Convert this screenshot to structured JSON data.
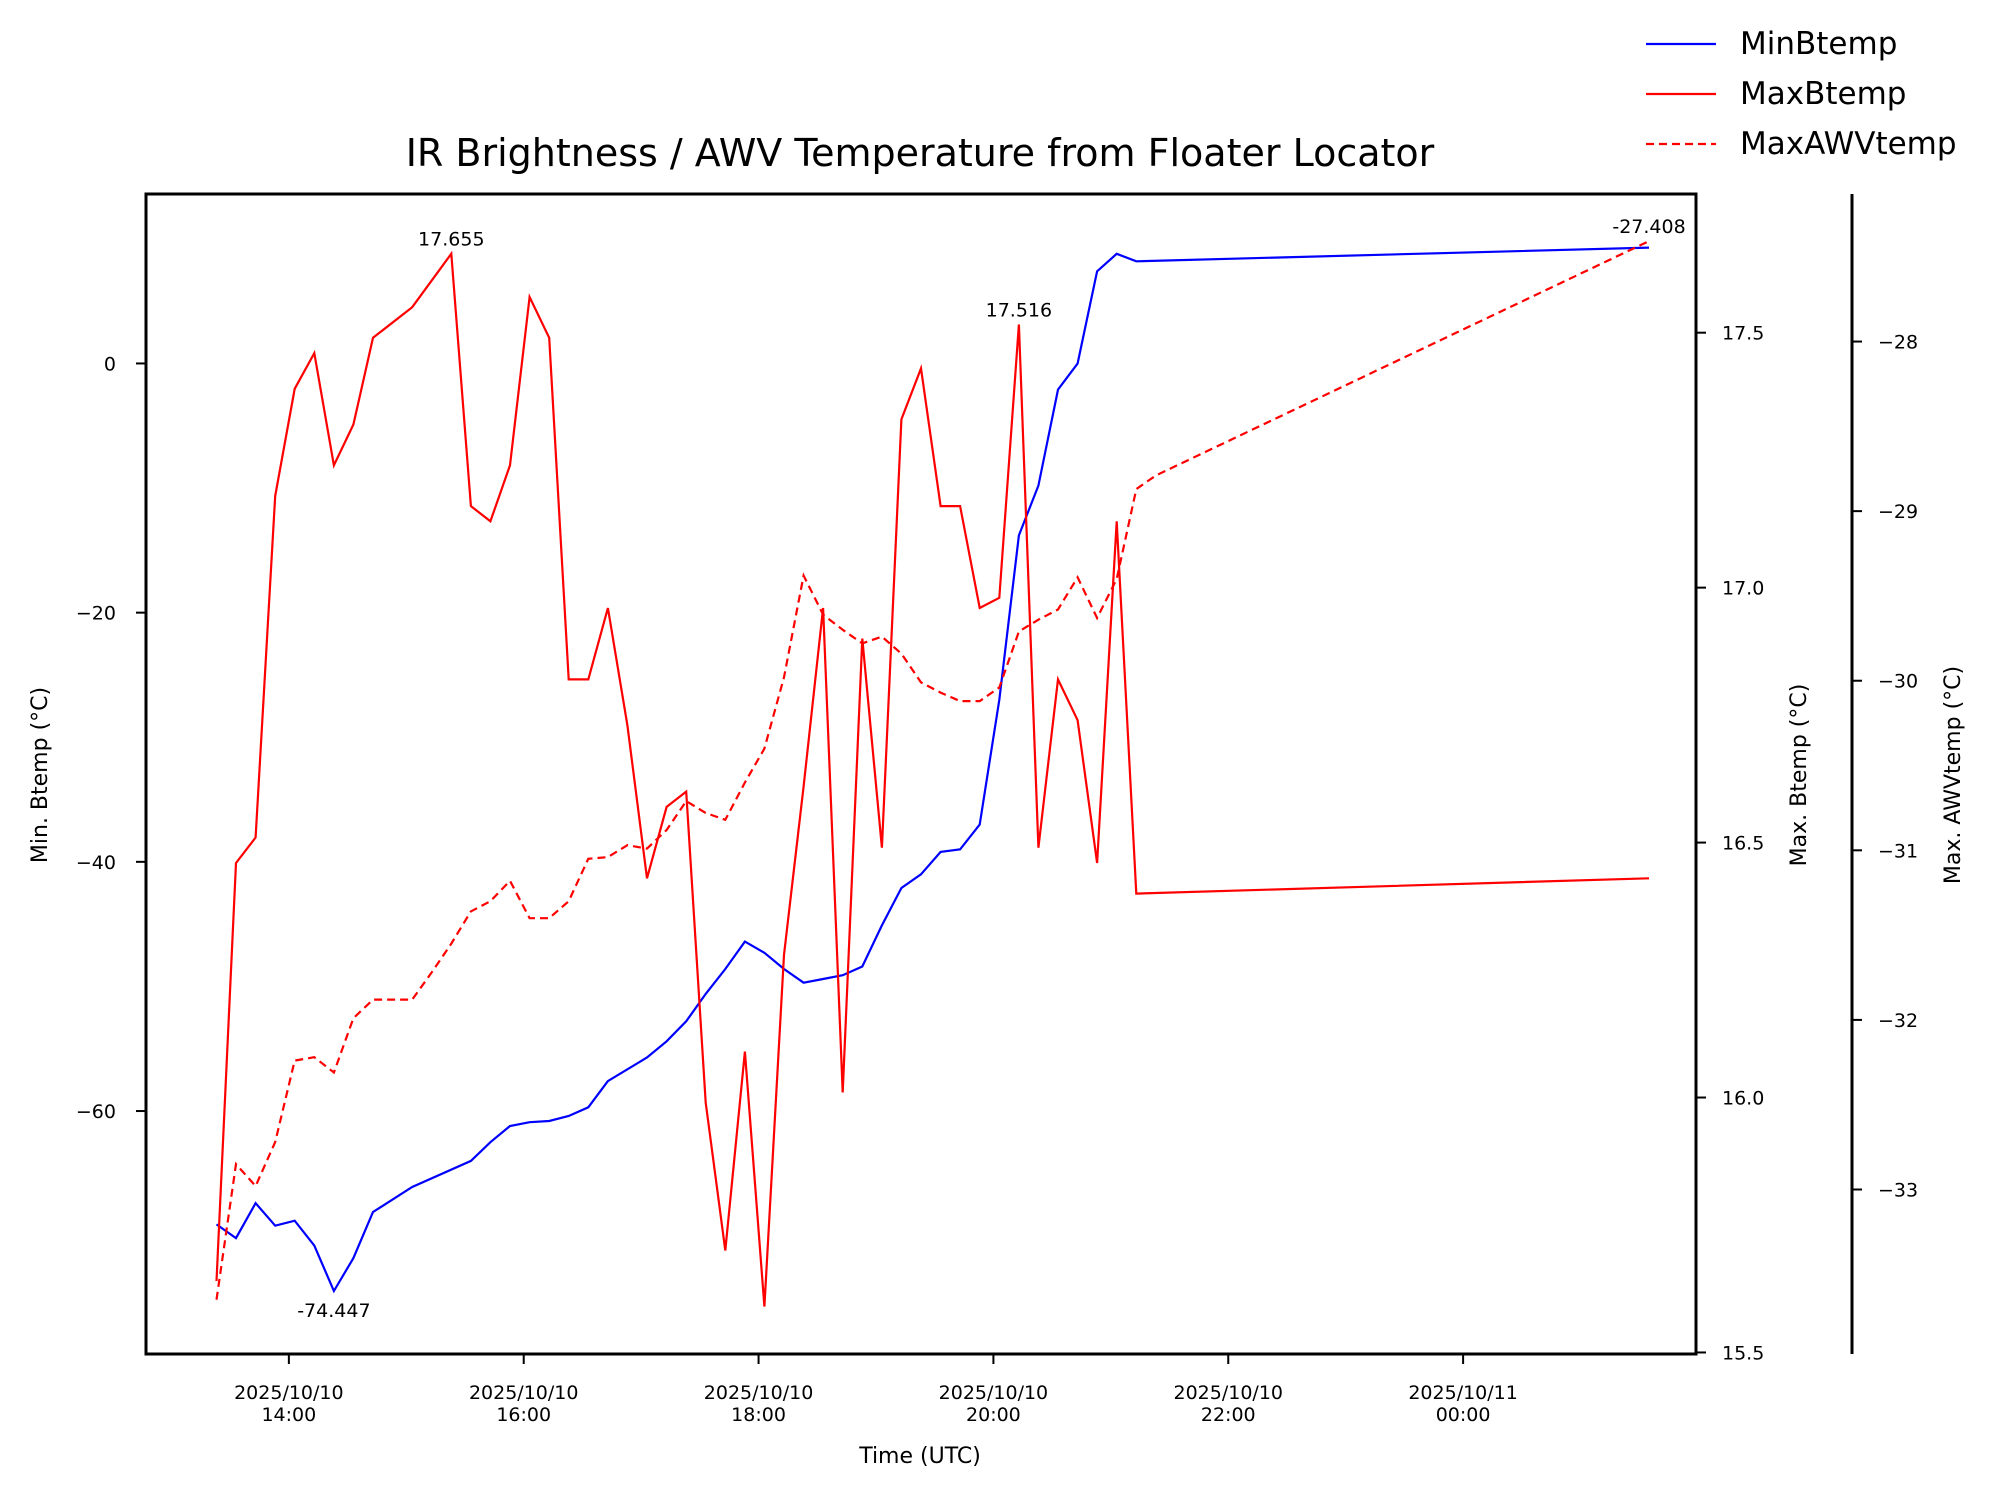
{
  "chart_data": {
    "type": "line",
    "title": "IR Brightness / AWV Temperature from Floater Locator",
    "xlabel": "Time (UTC)",
    "x_ticks": [
      {
        "value": "2025-10-10T14:00",
        "label_date": "2025/10/10",
        "label_time": "14:00"
      },
      {
        "value": "2025-10-10T16:00",
        "label_date": "2025/10/10",
        "label_time": "16:00"
      },
      {
        "value": "2025-10-10T18:00",
        "label_date": "2025/10/10",
        "label_time": "18:00"
      },
      {
        "value": "2025-10-10T20:00",
        "label_date": "2025/10/10",
        "label_time": "20:00"
      },
      {
        "value": "2025-10-10T22:00",
        "label_date": "2025/10/10",
        "label_time": "22:00"
      },
      {
        "value": "2025-10-11T00:00",
        "label_date": "2025/10/11",
        "label_time": "00:00"
      }
    ],
    "xlim": [
      "2025-10-10T12:47",
      "2025-10-11T01:59"
    ],
    "y_axes": [
      {
        "id": "min",
        "label": "Min. Btemp (°C)",
        "ylim": [
          -79.5,
          13.6
        ],
        "ticks": [
          0,
          -20,
          -40,
          -60
        ],
        "tick_labels": [
          "0",
          "−20",
          "−40",
          "−60"
        ]
      },
      {
        "id": "max",
        "label": "Max. Btemp (°C)",
        "ylim": [
          15.497,
          17.772
        ],
        "ticks": [
          17.5,
          17.0,
          16.5,
          16.0,
          15.5
        ],
        "tick_labels": [
          "17.5",
          "17.0",
          "16.5",
          "16.0",
          "15.5"
        ]
      },
      {
        "id": "awv",
        "label": "Max. AWVtemp (°C)",
        "ylim": [
          -33.97,
          -27.13
        ],
        "ticks": [
          -28,
          -29,
          -30,
          -31,
          -32,
          -33
        ],
        "tick_labels": [
          "−28",
          "−29",
          "−30",
          "−31",
          "−32",
          "−33"
        ]
      }
    ],
    "legend_position": "top-right, outside plot",
    "series": [
      {
        "name": "MinBtemp",
        "axis": "min",
        "color": "#0000ff",
        "style": "solid",
        "points": [
          [
            "2025-10-10T13:23",
            -69.1
          ],
          [
            "2025-10-10T13:33",
            -70.2
          ],
          [
            "2025-10-10T13:43",
            -67.4
          ],
          [
            "2025-10-10T13:53",
            -69.2
          ],
          [
            "2025-10-10T14:03",
            -68.8
          ],
          [
            "2025-10-10T14:13",
            -70.8
          ],
          [
            "2025-10-10T14:23",
            -74.447
          ],
          [
            "2025-10-10T14:33",
            -71.8
          ],
          [
            "2025-10-10T14:43",
            -68.1
          ],
          [
            "2025-10-10T15:03",
            -66.1
          ],
          [
            "2025-10-10T15:33",
            -64.0
          ],
          [
            "2025-10-10T15:43",
            -62.5
          ],
          [
            "2025-10-10T15:53",
            -61.2
          ],
          [
            "2025-10-10T16:03",
            -60.9
          ],
          [
            "2025-10-10T16:13",
            -60.8
          ],
          [
            "2025-10-10T16:23",
            -60.4
          ],
          [
            "2025-10-10T16:33",
            -59.7
          ],
          [
            "2025-10-10T16:43",
            -57.6
          ],
          [
            "2025-10-10T17:03",
            -55.7
          ],
          [
            "2025-10-10T17:13",
            -54.4
          ],
          [
            "2025-10-10T17:23",
            -52.8
          ],
          [
            "2025-10-10T17:33",
            -50.6
          ],
          [
            "2025-10-10T17:43",
            -48.6
          ],
          [
            "2025-10-10T17:53",
            -46.4
          ],
          [
            "2025-10-10T18:03",
            -47.3
          ],
          [
            "2025-10-10T18:13",
            -48.6
          ],
          [
            "2025-10-10T18:23",
            -49.7
          ],
          [
            "2025-10-10T18:33",
            -49.4
          ],
          [
            "2025-10-10T18:43",
            -49.1
          ],
          [
            "2025-10-10T18:53",
            -48.4
          ],
          [
            "2025-10-10T19:03",
            -45.1
          ],
          [
            "2025-10-10T19:13",
            -42.1
          ],
          [
            "2025-10-10T19:23",
            -41.0
          ],
          [
            "2025-10-10T19:33",
            -39.2
          ],
          [
            "2025-10-10T19:43",
            -39.0
          ],
          [
            "2025-10-10T19:53",
            -37.0
          ],
          [
            "2025-10-10T20:03",
            -27.0
          ],
          [
            "2025-10-10T20:13",
            -13.8
          ],
          [
            "2025-10-10T20:23",
            -9.8
          ],
          [
            "2025-10-10T20:33",
            -2.1
          ],
          [
            "2025-10-10T20:43",
            0.0
          ],
          [
            "2025-10-10T20:53",
            7.4
          ],
          [
            "2025-10-10T21:03",
            8.8
          ],
          [
            "2025-10-10T21:13",
            8.2
          ],
          [
            "2025-10-11T01:35",
            9.3
          ]
        ]
      },
      {
        "name": "MaxBtemp",
        "axis": "max",
        "color": "#ff0000",
        "style": "solid",
        "points": [
          [
            "2025-10-10T13:23",
            15.64
          ],
          [
            "2025-10-10T13:33",
            16.46
          ],
          [
            "2025-10-10T13:43",
            16.51
          ],
          [
            "2025-10-10T13:53",
            17.18
          ],
          [
            "2025-10-10T14:03",
            17.39
          ],
          [
            "2025-10-10T14:13",
            17.46
          ],
          [
            "2025-10-10T14:23",
            17.24
          ],
          [
            "2025-10-10T14:33",
            17.32
          ],
          [
            "2025-10-10T14:43",
            17.49
          ],
          [
            "2025-10-10T15:03",
            17.55
          ],
          [
            "2025-10-10T15:23",
            17.655
          ],
          [
            "2025-10-10T15:33",
            17.16
          ],
          [
            "2025-10-10T15:43",
            17.13
          ],
          [
            "2025-10-10T15:53",
            17.24
          ],
          [
            "2025-10-10T16:03",
            17.57
          ],
          [
            "2025-10-10T16:13",
            17.49
          ],
          [
            "2025-10-10T16:23",
            16.82
          ],
          [
            "2025-10-10T16:33",
            16.82
          ],
          [
            "2025-10-10T16:43",
            16.96
          ],
          [
            "2025-10-10T16:53",
            16.73
          ],
          [
            "2025-10-10T17:03",
            16.43
          ],
          [
            "2025-10-10T17:13",
            16.57
          ],
          [
            "2025-10-10T17:23",
            16.6
          ],
          [
            "2025-10-10T17:33",
            15.99
          ],
          [
            "2025-10-10T17:43",
            15.7
          ],
          [
            "2025-10-10T17:53",
            16.09
          ],
          [
            "2025-10-10T18:03",
            15.59
          ],
          [
            "2025-10-10T18:13",
            16.28
          ],
          [
            "2025-10-10T18:23",
            16.61
          ],
          [
            "2025-10-10T18:33",
            16.96
          ],
          [
            "2025-10-10T18:43",
            16.01
          ],
          [
            "2025-10-10T18:53",
            16.9
          ],
          [
            "2025-10-10T19:03",
            16.49
          ],
          [
            "2025-10-10T19:13",
            17.33
          ],
          [
            "2025-10-10T19:23",
            17.43
          ],
          [
            "2025-10-10T19:33",
            17.16
          ],
          [
            "2025-10-10T19:43",
            17.16
          ],
          [
            "2025-10-10T19:53",
            16.96
          ],
          [
            "2025-10-10T20:03",
            16.98
          ],
          [
            "2025-10-10T20:13",
            17.516
          ],
          [
            "2025-10-10T20:23",
            16.49
          ],
          [
            "2025-10-10T20:33",
            16.82
          ],
          [
            "2025-10-10T20:43",
            16.74
          ],
          [
            "2025-10-10T20:53",
            16.46
          ],
          [
            "2025-10-10T21:03",
            17.13
          ],
          [
            "2025-10-10T21:13",
            16.4
          ],
          [
            "2025-10-11T01:35",
            16.43
          ]
        ]
      },
      {
        "name": "MaxAWVtemp",
        "axis": "awv",
        "color": "#ff0000",
        "style": "dashed",
        "points": [
          [
            "2025-10-10T13:23",
            -33.65
          ],
          [
            "2025-10-10T13:33",
            -32.85
          ],
          [
            "2025-10-10T13:43",
            -32.98
          ],
          [
            "2025-10-10T13:53",
            -32.72
          ],
          [
            "2025-10-10T14:03",
            -32.24
          ],
          [
            "2025-10-10T14:13",
            -32.22
          ],
          [
            "2025-10-10T14:23",
            -32.31
          ],
          [
            "2025-10-10T14:33",
            -31.99
          ],
          [
            "2025-10-10T14:43",
            -31.88
          ],
          [
            "2025-10-10T15:03",
            -31.88
          ],
          [
            "2025-10-10T15:13",
            -31.72
          ],
          [
            "2025-10-10T15:23",
            -31.55
          ],
          [
            "2025-10-10T15:33",
            -31.36
          ],
          [
            "2025-10-10T15:43",
            -31.3
          ],
          [
            "2025-10-10T15:53",
            -31.18
          ],
          [
            "2025-10-10T16:03",
            -31.4
          ],
          [
            "2025-10-10T16:13",
            -31.4
          ],
          [
            "2025-10-10T16:23",
            -31.3
          ],
          [
            "2025-10-10T16:33",
            -31.05
          ],
          [
            "2025-10-10T16:43",
            -31.04
          ],
          [
            "2025-10-10T16:53",
            -30.97
          ],
          [
            "2025-10-10T17:03",
            -30.99
          ],
          [
            "2025-10-10T17:13",
            -30.88
          ],
          [
            "2025-10-10T17:23",
            -30.71
          ],
          [
            "2025-10-10T17:33",
            -30.78
          ],
          [
            "2025-10-10T17:43",
            -30.82
          ],
          [
            "2025-10-10T17:53",
            -30.6
          ],
          [
            "2025-10-10T18:03",
            -30.4
          ],
          [
            "2025-10-10T18:13",
            -29.98
          ],
          [
            "2025-10-10T18:23",
            -29.38
          ],
          [
            "2025-10-10T18:33",
            -29.61
          ],
          [
            "2025-10-10T18:43",
            -29.7
          ],
          [
            "2025-10-10T18:53",
            -29.78
          ],
          [
            "2025-10-10T19:03",
            -29.74
          ],
          [
            "2025-10-10T19:13",
            -29.84
          ],
          [
            "2025-10-10T19:23",
            -30.01
          ],
          [
            "2025-10-10T19:33",
            -30.07
          ],
          [
            "2025-10-10T19:43",
            -30.12
          ],
          [
            "2025-10-10T19:53",
            -30.12
          ],
          [
            "2025-10-10T20:03",
            -30.04
          ],
          [
            "2025-10-10T20:13",
            -29.71
          ],
          [
            "2025-10-10T20:23",
            -29.64
          ],
          [
            "2025-10-10T20:33",
            -29.58
          ],
          [
            "2025-10-10T20:43",
            -29.39
          ],
          [
            "2025-10-10T20:53",
            -29.63
          ],
          [
            "2025-10-10T21:03",
            -29.4
          ],
          [
            "2025-10-10T21:13",
            -28.87
          ],
          [
            "2025-10-10T21:23",
            -28.79
          ],
          [
            "2025-10-11T01:35",
            -27.408
          ]
        ]
      }
    ],
    "annotations": [
      {
        "text": "17.655",
        "series": "MaxBtemp",
        "x": "2025-10-10T15:23",
        "y": 17.655,
        "position": "above"
      },
      {
        "text": "17.516",
        "series": "MaxBtemp",
        "x": "2025-10-10T20:13",
        "y": 17.516,
        "position": "above"
      },
      {
        "text": "-74.447",
        "series": "MinBtemp",
        "x": "2025-10-10T14:23",
        "y": -74.447,
        "position": "below"
      },
      {
        "text": "-27.408",
        "series": "MaxAWVtemp",
        "x": "2025-10-11T01:35",
        "y": -27.408,
        "position": "above"
      }
    ]
  }
}
